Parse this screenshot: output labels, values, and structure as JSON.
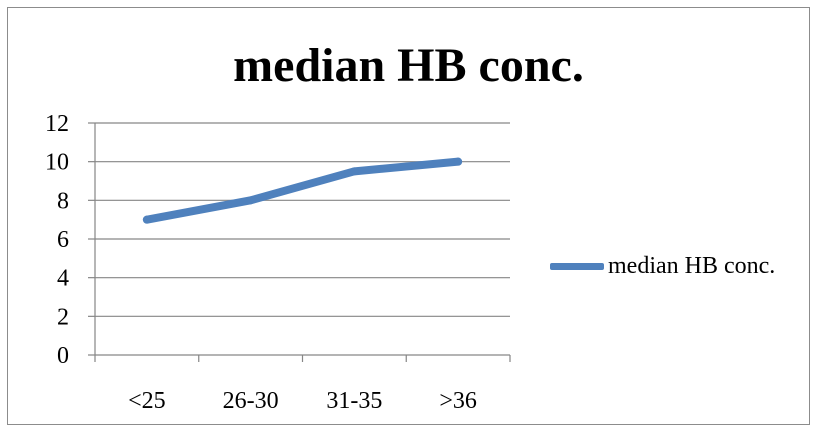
{
  "chart_data": {
    "type": "line",
    "title": "median HB conc.",
    "categories": [
      "<25",
      "26-30",
      "31-35",
      ">36"
    ],
    "series": [
      {
        "name": "median HB conc.",
        "values": [
          7,
          8,
          9.5,
          10
        ],
        "color": "#4F81BD"
      }
    ],
    "y_ticks": [
      "0",
      "2",
      "4",
      "6",
      "8",
      "10",
      "12"
    ],
    "ylim": [
      0,
      12
    ],
    "xlabel": "",
    "ylabel": "",
    "grid": "horizontal",
    "legend_position": "right"
  }
}
